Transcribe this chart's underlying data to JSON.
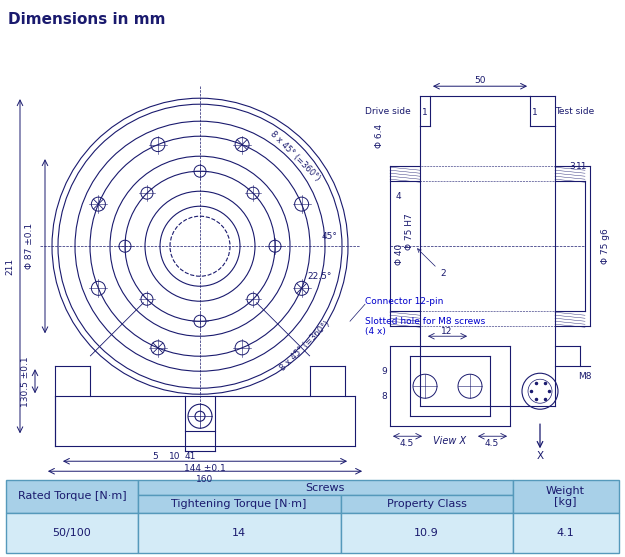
{
  "title": "Dimensions in mm",
  "title_bg": "#cce0f0",
  "drawing_bg": "#ffffff",
  "table_bg_header": "#a8d0e8",
  "table_bg_data": "#d4ebf7",
  "table_border": "#5599bb",
  "table": {
    "col_headers": [
      "Rated Torque [N·m]",
      "Screws",
      "",
      "Weight\n[kg]"
    ],
    "sub_headers": [
      "",
      "Tightening Torque [N·m]",
      "Property Class",
      ""
    ],
    "data": [
      "50/100",
      "14",
      "10.9",
      "4.1"
    ],
    "screws_label": "Screws"
  },
  "line_color": "#1a1a6e",
  "dim_color": "#1a1a6e",
  "annotation_color": "#1a1a6e"
}
